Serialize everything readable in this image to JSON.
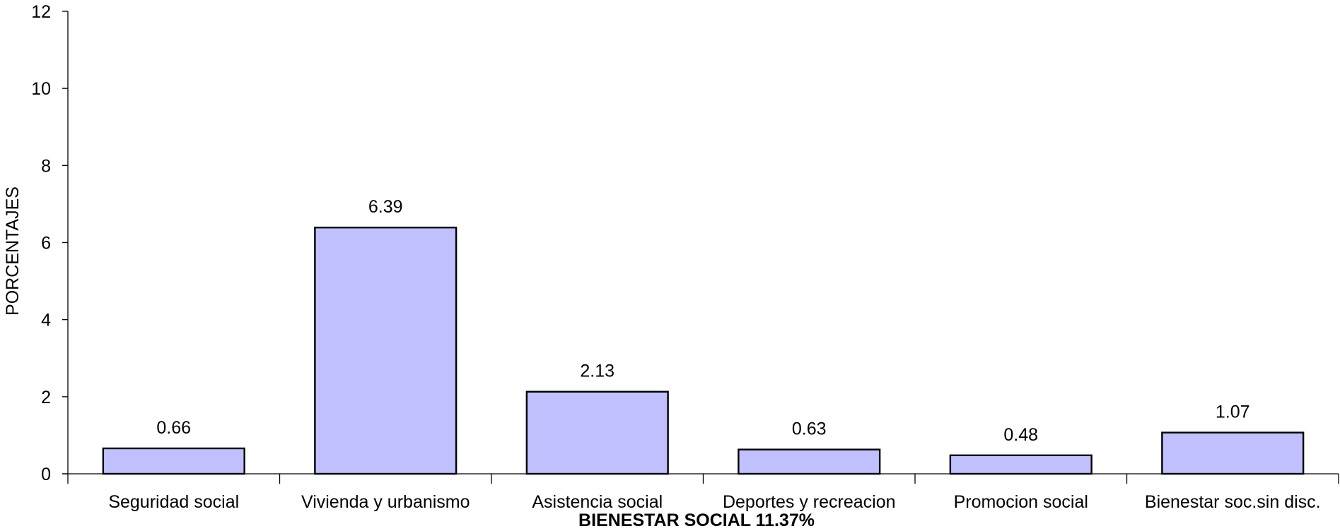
{
  "chart_data": {
    "type": "bar",
    "title": "BIENESTAR SOCIAL 11.37%",
    "xlabel": "BIENESTAR SOCIAL 11.37%",
    "ylabel": "PORCENTAJES",
    "categories": [
      "Seguridad social",
      "Vivienda y urbanismo",
      "Asistencia social",
      "Deportes y recreacion",
      "Promocion social",
      "Bienestar soc.sin disc."
    ],
    "values": [
      0.66,
      6.39,
      2.13,
      0.63,
      0.48,
      1.07
    ],
    "data_labels": [
      "0.66",
      "6.39",
      "2.13",
      "0.63",
      "0.48",
      "1.07"
    ],
    "ylim": [
      0,
      12
    ],
    "yticks": [
      0,
      2,
      4,
      6,
      8,
      10,
      12
    ],
    "ytick_labels": [
      "0",
      "2",
      "4",
      "6",
      "8",
      "10",
      "12"
    ],
    "grid": false,
    "legend": "none",
    "bar_color": "#c0c0ff",
    "bar_edge_color": "#000000"
  }
}
